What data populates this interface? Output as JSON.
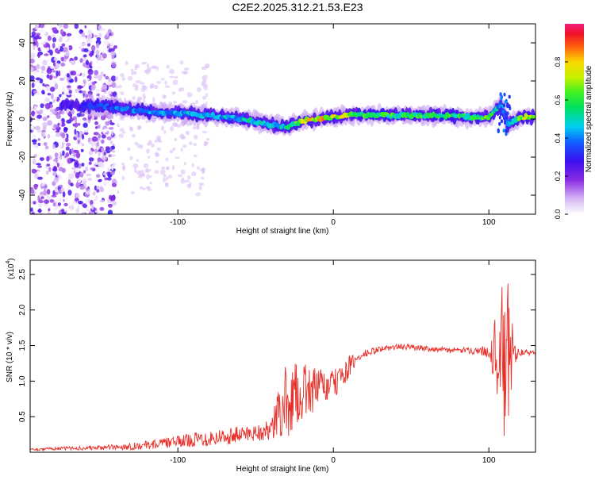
{
  "title": "C2E2.2025.312.21.53.E23",
  "chart_data": [
    {
      "type": "heatmap",
      "title": "",
      "xlabel": "Height of straight line (km)",
      "ylabel": "Frequency (Hz)",
      "xlim": [
        -195,
        130
      ],
      "ylim": [
        -50,
        50
      ],
      "x_ticks": [
        -100,
        0,
        100
      ],
      "y_ticks": [
        -40,
        -20,
        0,
        20,
        40
      ],
      "colorbar": {
        "label": "Normalized spectral amplitude",
        "range": [
          0,
          1
        ],
        "ticks": [
          "0.0",
          "0.2",
          "0.4",
          "0.6",
          "0.8"
        ],
        "tick_values": [
          0,
          0.2,
          0.4,
          0.6,
          0.8
        ]
      },
      "ridge": {
        "x": [
          -180,
          -150,
          -120,
          -100,
          -80,
          -60,
          -40,
          -30,
          -20,
          -10,
          0,
          10,
          30,
          60,
          90,
          100,
          108,
          112,
          120,
          130
        ],
        "freq_hz": [
          7,
          7,
          4,
          3,
          2,
          0,
          -3,
          -4,
          -1,
          0,
          1,
          2,
          2,
          2,
          1,
          1,
          8,
          -3,
          1,
          1
        ],
        "amplitude": [
          0.2,
          0.35,
          0.45,
          0.45,
          0.45,
          0.5,
          0.55,
          0.5,
          0.75,
          0.85,
          0.8,
          0.7,
          0.6,
          0.6,
          0.6,
          0.65,
          0.4,
          0.4,
          0.7,
          0.7
        ]
      },
      "noise_region": {
        "x_range": [
          -195,
          -140
        ],
        "freq_range": [
          -50,
          50
        ]
      }
    },
    {
      "type": "line",
      "title": "",
      "xlabel": "Height of straight line (km)",
      "ylabel": "SNR (10 * v/v)",
      "y_multiplier_label": "(x10",
      "y_multiplier_exp": "4",
      "y_multiplier_close": ")",
      "xlim": [
        -195,
        130
      ],
      "ylim": [
        0,
        2.7
      ],
      "x_ticks": [
        -100,
        0,
        100
      ],
      "y_ticks": [
        0.5,
        1.0,
        1.5,
        2.0,
        2.5
      ],
      "y_tick_labels": [
        "0.5",
        "1.0",
        "1.5",
        "2.0",
        "2.5"
      ],
      "color": "#e8302a",
      "series": [
        {
          "name": "SNR",
          "x": [
            -195,
            -180,
            -160,
            -140,
            -120,
            -100,
            -90,
            -80,
            -70,
            -60,
            -50,
            -40,
            -35,
            -30,
            -25,
            -20,
            -15,
            -10,
            -5,
            0,
            5,
            10,
            15,
            20,
            30,
            40,
            50,
            60,
            70,
            80,
            90,
            100,
            105,
            108,
            110,
            112,
            114,
            116,
            120,
            125,
            130
          ],
          "center": [
            0.04,
            0.05,
            0.06,
            0.07,
            0.1,
            0.15,
            0.18,
            0.2,
            0.22,
            0.25,
            0.28,
            0.3,
            0.55,
            0.7,
            0.8,
            0.85,
            0.88,
            0.9,
            0.92,
            0.95,
            1.05,
            1.2,
            1.3,
            1.38,
            1.45,
            1.48,
            1.48,
            1.46,
            1.44,
            1.43,
            1.43,
            1.42,
            1.4,
            1.3,
            1.2,
            1.3,
            1.4,
            1.42,
            1.4,
            1.4,
            1.4
          ],
          "spread": [
            0.02,
            0.02,
            0.03,
            0.04,
            0.06,
            0.08,
            0.1,
            0.12,
            0.12,
            0.12,
            0.12,
            0.15,
            0.4,
            0.55,
            0.45,
            0.4,
            0.35,
            0.3,
            0.25,
            0.2,
            0.2,
            0.15,
            0.1,
            0.06,
            0.04,
            0.04,
            0.04,
            0.04,
            0.04,
            0.04,
            0.05,
            0.08,
            0.6,
            1.0,
            1.3,
            1.2,
            0.8,
            0.2,
            0.05,
            0.04,
            0.04
          ]
        }
      ]
    }
  ]
}
